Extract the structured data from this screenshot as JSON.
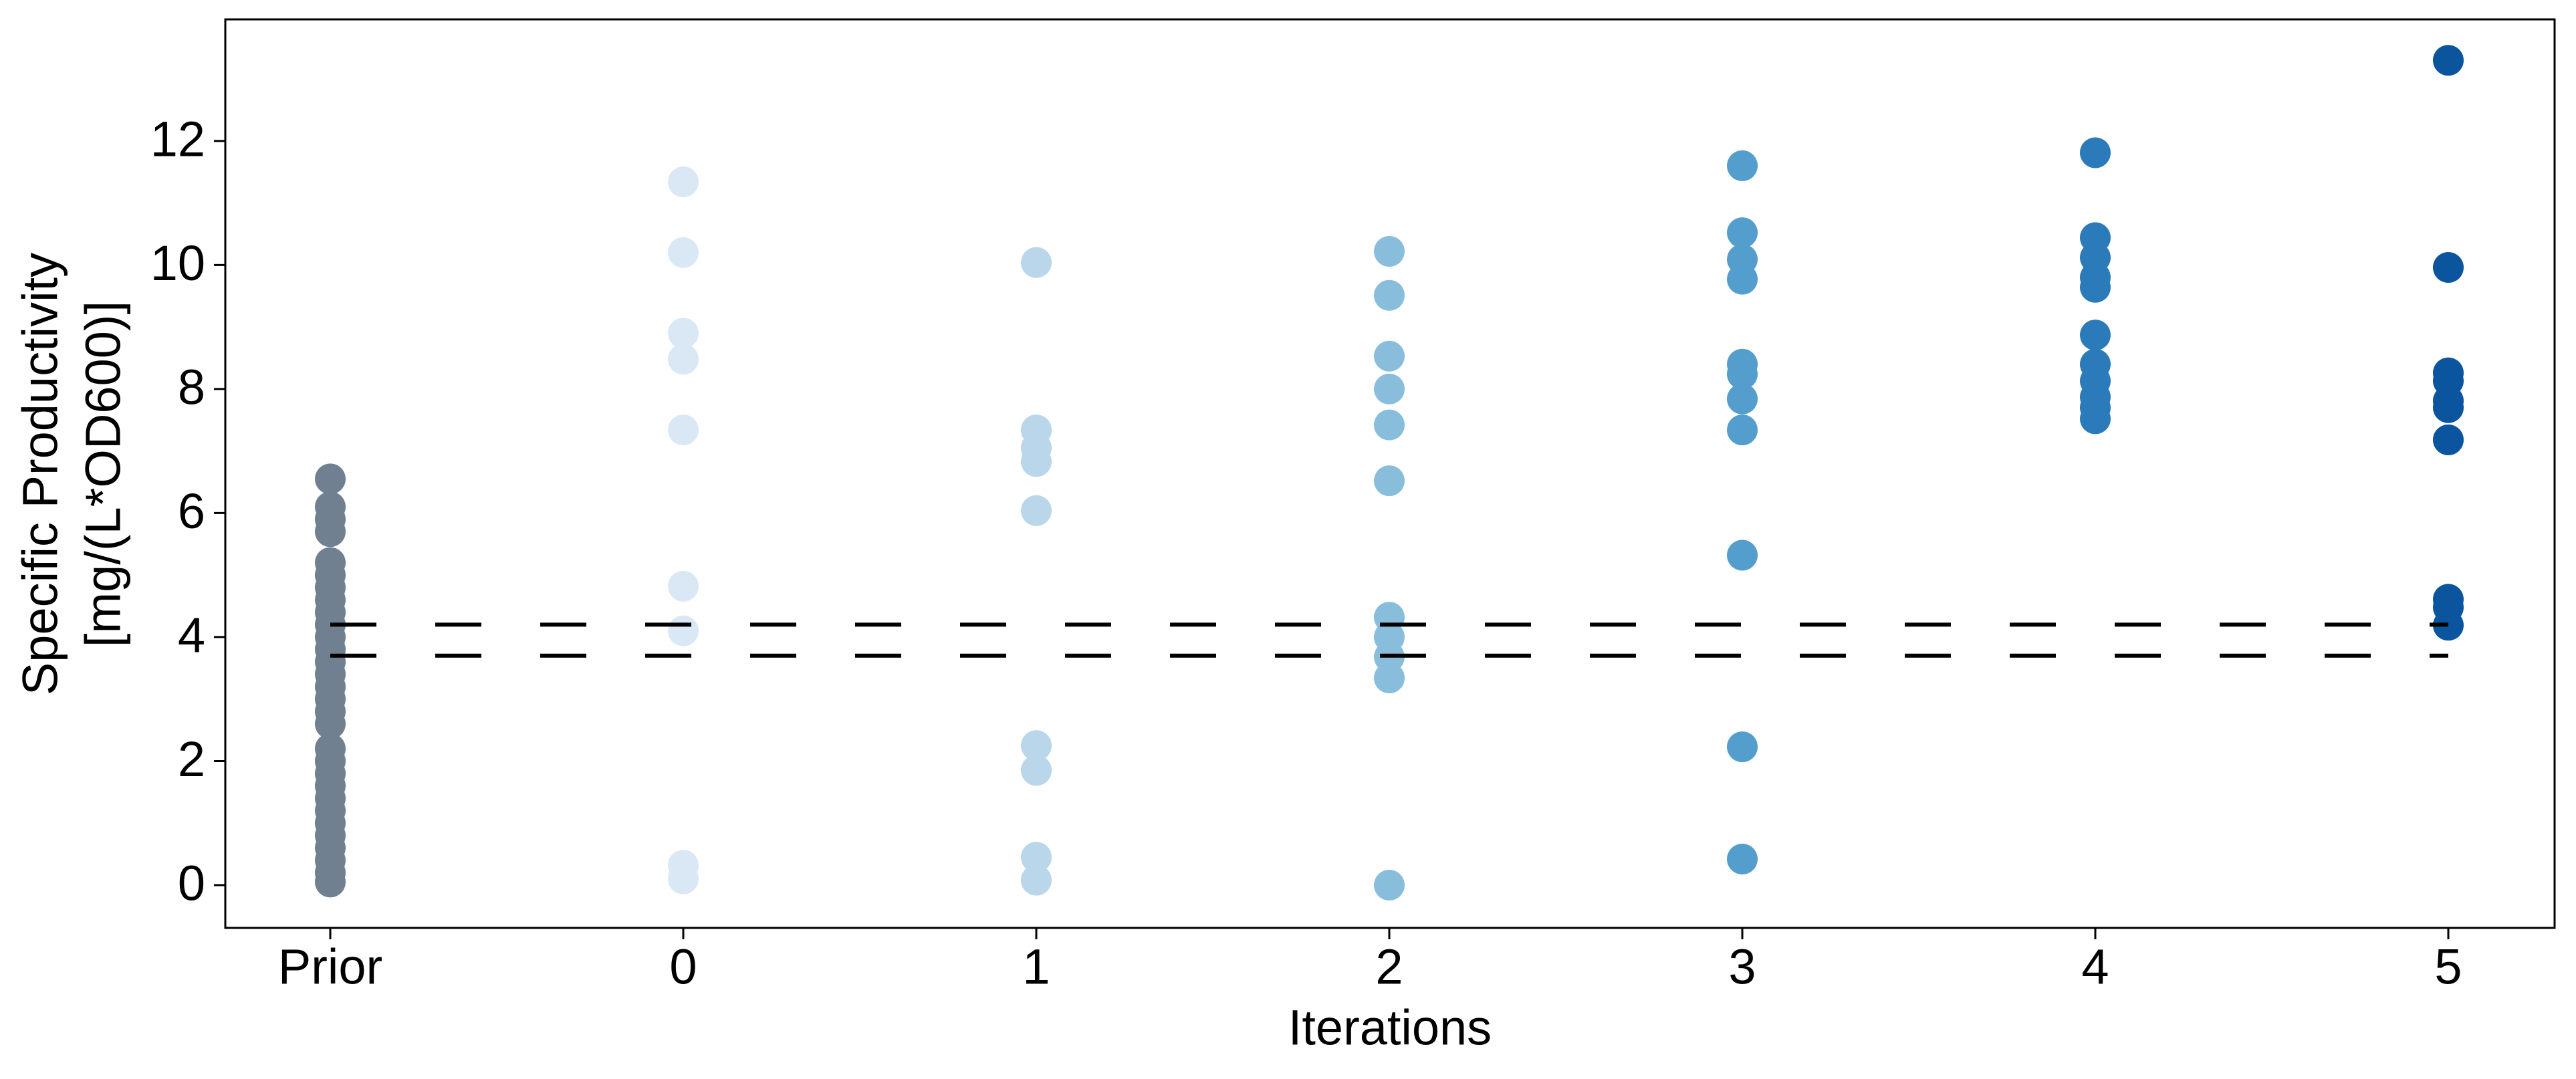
{
  "chart_data": {
    "type": "strip",
    "xlabel": "Iterations",
    "ylabel": [
      "Specific Productivity",
      "[mg/(L*OD600)]"
    ],
    "categories": [
      "Prior",
      "0",
      "1",
      "2",
      "3",
      "4",
      "5"
    ],
    "colors": [
      "#708090",
      "#dae8f5",
      "#b9d6ea",
      "#88bedc",
      "#539ecd",
      "#2b7bba",
      "#0b559f"
    ],
    "values": [
      [
        6.55,
        6.1,
        5.9,
        5.7,
        5.2,
        5.0,
        4.8,
        4.6,
        4.4,
        4.2,
        4.0,
        3.8,
        3.6,
        3.4,
        3.2,
        3.0,
        2.8,
        2.6,
        2.2,
        2.0,
        1.8,
        1.6,
        1.4,
        1.2,
        1.0,
        0.8,
        0.6,
        0.4,
        0.2,
        0.05
      ],
      [
        11.34,
        10.2,
        8.9,
        8.48,
        7.34,
        4.82,
        4.1,
        0.32,
        0.1
      ],
      [
        10.04,
        7.34,
        7.05,
        6.83,
        6.04,
        2.25,
        1.85,
        0.45,
        0.08
      ],
      [
        10.22,
        9.51,
        8.53,
        8.0,
        7.42,
        6.52,
        4.32,
        4.0,
        3.68,
        3.34,
        0.0
      ],
      [
        11.6,
        10.52,
        10.09,
        9.77,
        8.4,
        8.24,
        7.84,
        7.34,
        5.32,
        2.23,
        0.42
      ],
      [
        11.81,
        10.44,
        10.12,
        9.8,
        9.64,
        8.87,
        8.4,
        8.13,
        7.87,
        7.7,
        7.52
      ],
      [
        13.3,
        9.96,
        8.26,
        8.13,
        7.81,
        7.7,
        7.18,
        4.61,
        4.48,
        4.19
      ]
    ],
    "hlines": [
      4.2,
      3.7
    ],
    "ylim": [
      -0.69,
      13.96
    ],
    "yticks": [
      0,
      2,
      4,
      6,
      8,
      10,
      12
    ]
  }
}
